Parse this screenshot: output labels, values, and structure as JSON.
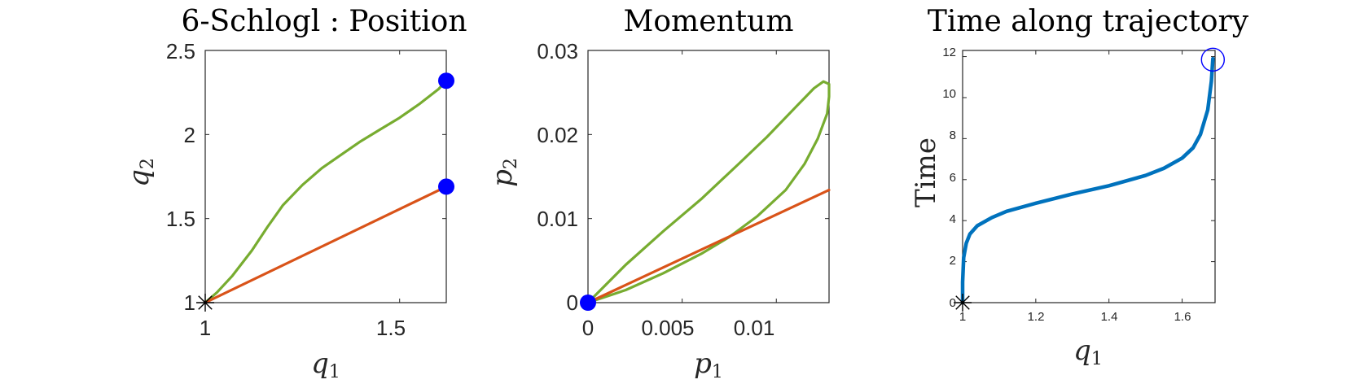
{
  "chart_data": [
    {
      "type": "line",
      "title": "6-Schlogl : Position",
      "xlabel": "q1",
      "ylabel": "q2",
      "xlim": [
        1,
        1.62
      ],
      "ylim": [
        1,
        2.5
      ],
      "xticks": [
        "1",
        "1.5"
      ],
      "yticks": [
        "1",
        "1.5",
        "2",
        "2.5"
      ],
      "series": [
        {
          "color": "#77AC30",
          "x": [
            1.0,
            1.03,
            1.07,
            1.12,
            1.16,
            1.2,
            1.25,
            1.3,
            1.35,
            1.4,
            1.45,
            1.5,
            1.55,
            1.6,
            1.62
          ],
          "y": [
            1.0,
            1.06,
            1.16,
            1.31,
            1.45,
            1.58,
            1.7,
            1.8,
            1.88,
            1.96,
            2.03,
            2.1,
            2.18,
            2.27,
            2.32
          ]
        },
        {
          "color": "#D95319",
          "x": [
            1.0,
            1.62
          ],
          "y": [
            1.0,
            1.69
          ]
        }
      ],
      "markers": [
        {
          "kind": "dot",
          "color": "#0000FF",
          "x": 1.62,
          "y": 2.32
        },
        {
          "kind": "dot",
          "color": "#0000FF",
          "x": 1.62,
          "y": 1.69
        },
        {
          "kind": "star",
          "color": "#000000",
          "x": 1.0,
          "y": 1.0
        }
      ]
    },
    {
      "type": "line",
      "title": "Momentum",
      "xlabel": "p1",
      "ylabel": "p2",
      "xlim": [
        0,
        0.0128
      ],
      "ylim": [
        0,
        0.03
      ],
      "xticks": [
        "0",
        "0.005",
        "0.01"
      ],
      "yticks": [
        "0",
        "0.01",
        "0.02",
        "0.03"
      ],
      "series": [
        {
          "color": "#77AC30",
          "x": [
            0,
            0.002,
            0.004,
            0.006,
            0.008,
            0.0095,
            0.011,
            0.012,
            0.0125,
            0.0128,
            0.0128,
            0.0127,
            0.0122,
            0.0115,
            0.0105,
            0.009,
            0.0075,
            0.006,
            0.004,
            0.002,
            0
          ],
          "y": [
            0,
            0.0045,
            0.0085,
            0.0123,
            0.0165,
            0.0197,
            0.0232,
            0.0255,
            0.0263,
            0.026,
            0.0245,
            0.0225,
            0.0195,
            0.0165,
            0.0134,
            0.0103,
            0.0078,
            0.0058,
            0.0035,
            0.0015,
            0
          ]
        },
        {
          "color": "#D95319",
          "x": [
            0,
            0.0128
          ],
          "y": [
            0,
            0.0134
          ]
        }
      ],
      "markers": [
        {
          "kind": "dot",
          "color": "#0000FF",
          "x": 0,
          "y": 0
        }
      ]
    },
    {
      "type": "line",
      "title": "Time along trajectory",
      "xlabel": "q1",
      "ylabel": "Time",
      "xlim": [
        1,
        1.69
      ],
      "ylim": [
        0,
        12.3
      ],
      "xticks": [
        "1",
        "1.2",
        "1.4",
        "1.6"
      ],
      "yticks": [
        "0",
        "2",
        "4",
        "6",
        "8",
        "10",
        "12"
      ],
      "series": [
        {
          "color": "#0072BD",
          "x": [
            1.0,
            1.0,
            1.003,
            1.01,
            1.02,
            1.04,
            1.08,
            1.12,
            1.2,
            1.3,
            1.4,
            1.5,
            1.55,
            1.6,
            1.63,
            1.65,
            1.67,
            1.68,
            1.684
          ],
          "y": [
            0.0,
            1.0,
            2.2,
            2.9,
            3.35,
            3.75,
            4.15,
            4.45,
            4.85,
            5.3,
            5.7,
            6.2,
            6.55,
            7.05,
            7.55,
            8.2,
            9.4,
            10.8,
            11.9
          ]
        }
      ],
      "markers": [
        {
          "kind": "circle",
          "color": "#0000FF",
          "x": 1.684,
          "y": 11.85
        },
        {
          "kind": "star",
          "color": "#000000",
          "x": 1.0,
          "y": 0
        }
      ]
    }
  ]
}
